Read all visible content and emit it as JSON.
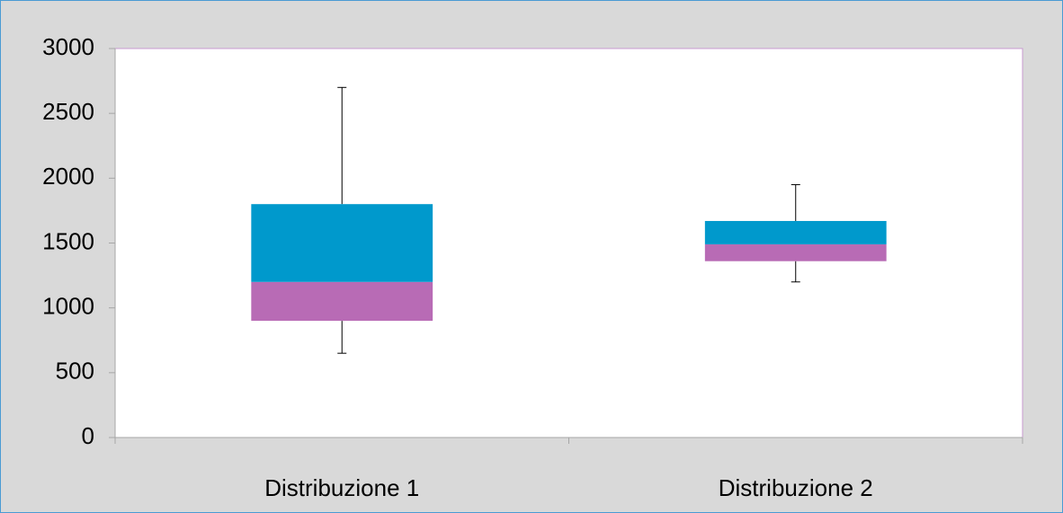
{
  "chart_data": {
    "type": "box",
    "categories": [
      "Distribuzione 1",
      "Distribuzione 2"
    ],
    "boxes": [
      {
        "min": 650,
        "q1": 900,
        "median": 1200,
        "q3": 1800,
        "max": 2700
      },
      {
        "min": 1200,
        "q1": 1360,
        "median": 1490,
        "q3": 1670,
        "max": 1950
      }
    ],
    "lower_color": "#b86bb5",
    "upper_color": "#0099cc",
    "ylim": [
      0,
      3000
    ],
    "yticks": [
      0,
      500,
      1000,
      1500,
      2000,
      2500,
      3000
    ]
  }
}
